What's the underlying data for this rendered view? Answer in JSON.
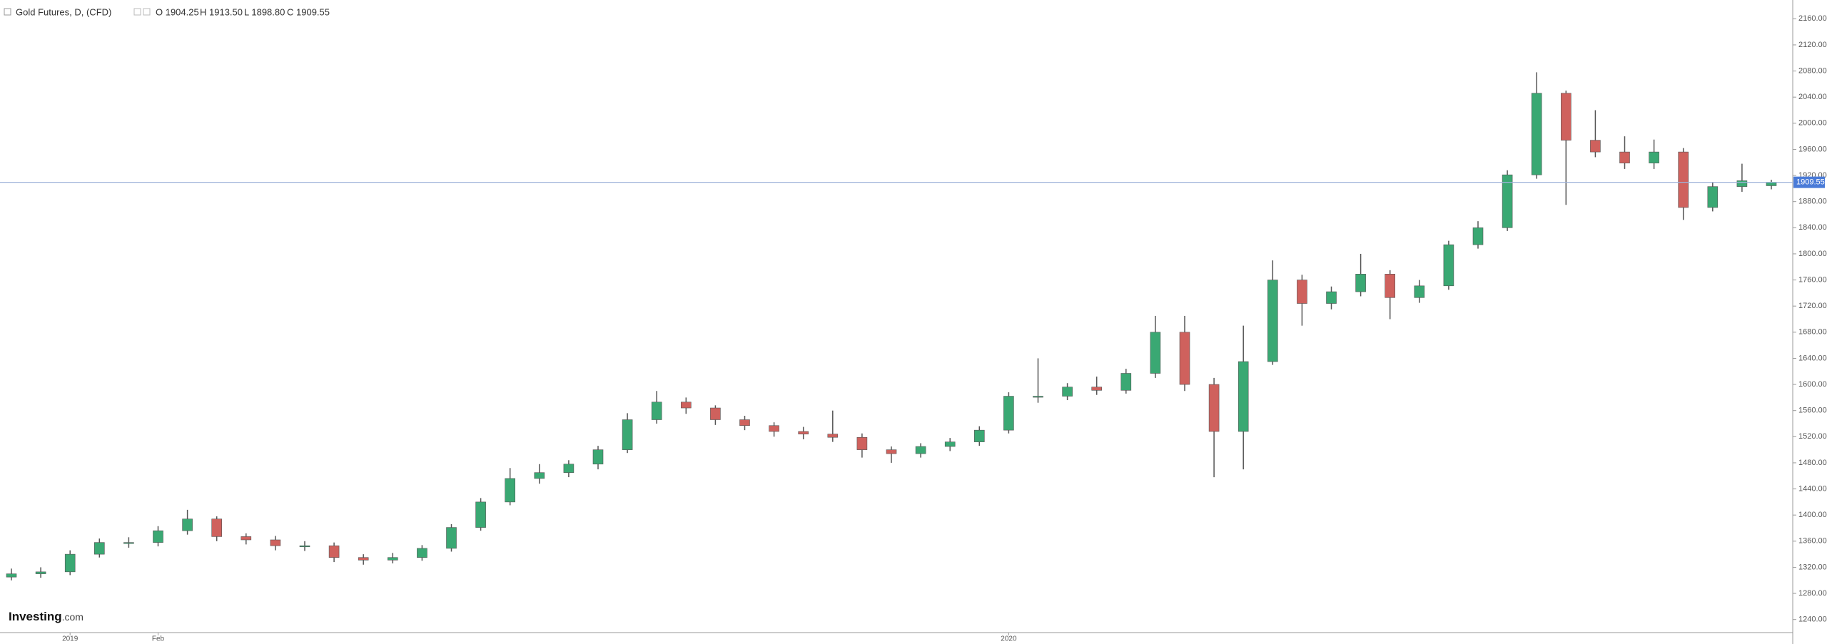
{
  "chart_data": {
    "type": "candlestick",
    "title": "Gold Futures, D, (CFD)",
    "ohlc_labels": [
      "O 1904.25",
      "H 1913.50",
      "L 1898.80",
      "C 1909.55"
    ],
    "brand": [
      "Investing",
      ".com"
    ],
    "categories": [
      null,
      null,
      "2019",
      null,
      null,
      "Feb",
      null,
      null,
      null,
      null,
      null,
      null,
      null,
      null,
      null,
      null,
      null,
      null,
      null,
      null,
      null,
      null,
      null,
      null,
      null,
      null,
      null,
      null,
      null,
      null,
      null,
      null,
      null,
      null,
      "2020",
      null,
      null,
      null,
      null,
      null,
      null,
      null,
      null,
      null,
      null,
      null,
      null,
      null,
      null,
      null,
      null,
      null,
      null,
      null,
      null,
      null,
      null,
      null,
      null,
      null,
      null
    ],
    "open": [
      1305,
      1310,
      1313,
      1340,
      1358,
      1358,
      1376,
      1394,
      1367,
      1362,
      1353,
      1353,
      1335,
      1331,
      1335,
      1349,
      1381,
      1420,
      1456,
      1465,
      1478,
      1500,
      1546,
      1573,
      1564,
      1546,
      1537,
      1528,
      1524,
      1519,
      1500,
      1494,
      1505,
      1512,
      1530,
      1582,
      1582,
      1596,
      1591,
      1617,
      1680,
      1600,
      1528,
      1635,
      1760,
      1724,
      1742,
      1769,
      1733,
      1751,
      1814,
      1840,
      1921,
      2046,
      1974,
      1956,
      1939,
      1956,
      1871,
      1903,
      1904.25
    ],
    "high": [
      1318,
      1320,
      1346,
      1364,
      1366,
      1383,
      1408,
      1398,
      1372,
      1368,
      1360,
      1358,
      1340,
      1342,
      1354,
      1386,
      1426,
      1472,
      1478,
      1484,
      1506,
      1556,
      1590,
      1580,
      1568,
      1552,
      1542,
      1535,
      1560,
      1525,
      1505,
      1510,
      1518,
      1536,
      1588,
      1640,
      1602,
      1612,
      1624,
      1705,
      1705,
      1610,
      1690,
      1790,
      1768,
      1750,
      1800,
      1775,
      1760,
      1820,
      1850,
      1928,
      2078,
      2050,
      2020,
      1980,
      1975,
      1962,
      1910,
      1938,
      1913.5
    ],
    "low": [
      1300,
      1304,
      1308,
      1335,
      1350,
      1352,
      1370,
      1360,
      1355,
      1346,
      1345,
      1328,
      1324,
      1326,
      1330,
      1344,
      1376,
      1415,
      1448,
      1458,
      1470,
      1495,
      1540,
      1555,
      1538,
      1530,
      1520,
      1516,
      1512,
      1488,
      1480,
      1488,
      1498,
      1506,
      1525,
      1572,
      1576,
      1584,
      1586,
      1610,
      1590,
      1458,
      1470,
      1630,
      1690,
      1715,
      1735,
      1700,
      1725,
      1745,
      1808,
      1835,
      1915,
      1875,
      1948,
      1930,
      1930,
      1852,
      1865,
      1895,
      1898.8
    ],
    "close": [
      1310,
      1313,
      1340,
      1358,
      1358,
      1376,
      1394,
      1367,
      1362,
      1353,
      1353,
      1335,
      1331,
      1335,
      1349,
      1381,
      1420,
      1456,
      1465,
      1478,
      1500,
      1546,
      1573,
      1564,
      1546,
      1537,
      1528,
      1524,
      1519,
      1500,
      1494,
      1505,
      1512,
      1530,
      1582,
      1582,
      1596,
      1591,
      1617,
      1680,
      1600,
      1528,
      1635,
      1760,
      1724,
      1742,
      1769,
      1733,
      1751,
      1814,
      1840,
      1921,
      2046,
      1974,
      1956,
      1939,
      1956,
      1871,
      1903,
      1912,
      1909.55
    ],
    "up_color": "#3aa873",
    "down_color": "#cf615d",
    "last_price_color": "#4a7bd8",
    "ylim": [
      1220,
      2180
    ],
    "yticks": [
      {
        "value": 1240,
        "label": "1240.00"
      },
      {
        "value": 1280,
        "label": "1280.00"
      },
      {
        "value": 1320,
        "label": "1320.00"
      },
      {
        "value": 1360,
        "label": "1360.00"
      },
      {
        "value": 1400,
        "label": "1400.00"
      },
      {
        "value": 1440,
        "label": "1440.00"
      },
      {
        "value": 1480,
        "label": "1480.00"
      },
      {
        "value": 1520,
        "label": "1520.00"
      },
      {
        "value": 1560,
        "label": "1560.00"
      },
      {
        "value": 1600,
        "label": "1600.00"
      },
      {
        "value": 1640,
        "label": "1640.00"
      },
      {
        "value": 1680,
        "label": "1680.00"
      },
      {
        "value": 1720,
        "label": "1720.00"
      },
      {
        "value": 1760,
        "label": "1760.00"
      },
      {
        "value": 1800,
        "label": "1800.00"
      },
      {
        "value": 1840,
        "label": "1840.00"
      },
      {
        "value": 1880,
        "label": "1880.00"
      },
      {
        "value": 1920,
        "label": "1920.00"
      },
      {
        "value": 1960,
        "label": "1960.00"
      },
      {
        "value": 2000,
        "label": "2000.00"
      },
      {
        "value": 2040,
        "label": "2040.00"
      },
      {
        "value": 2080,
        "label": "2080.00"
      },
      {
        "value": 2120,
        "label": "2120.00"
      },
      {
        "value": 2160,
        "label": "2160.00"
      }
    ],
    "grid": false
  }
}
